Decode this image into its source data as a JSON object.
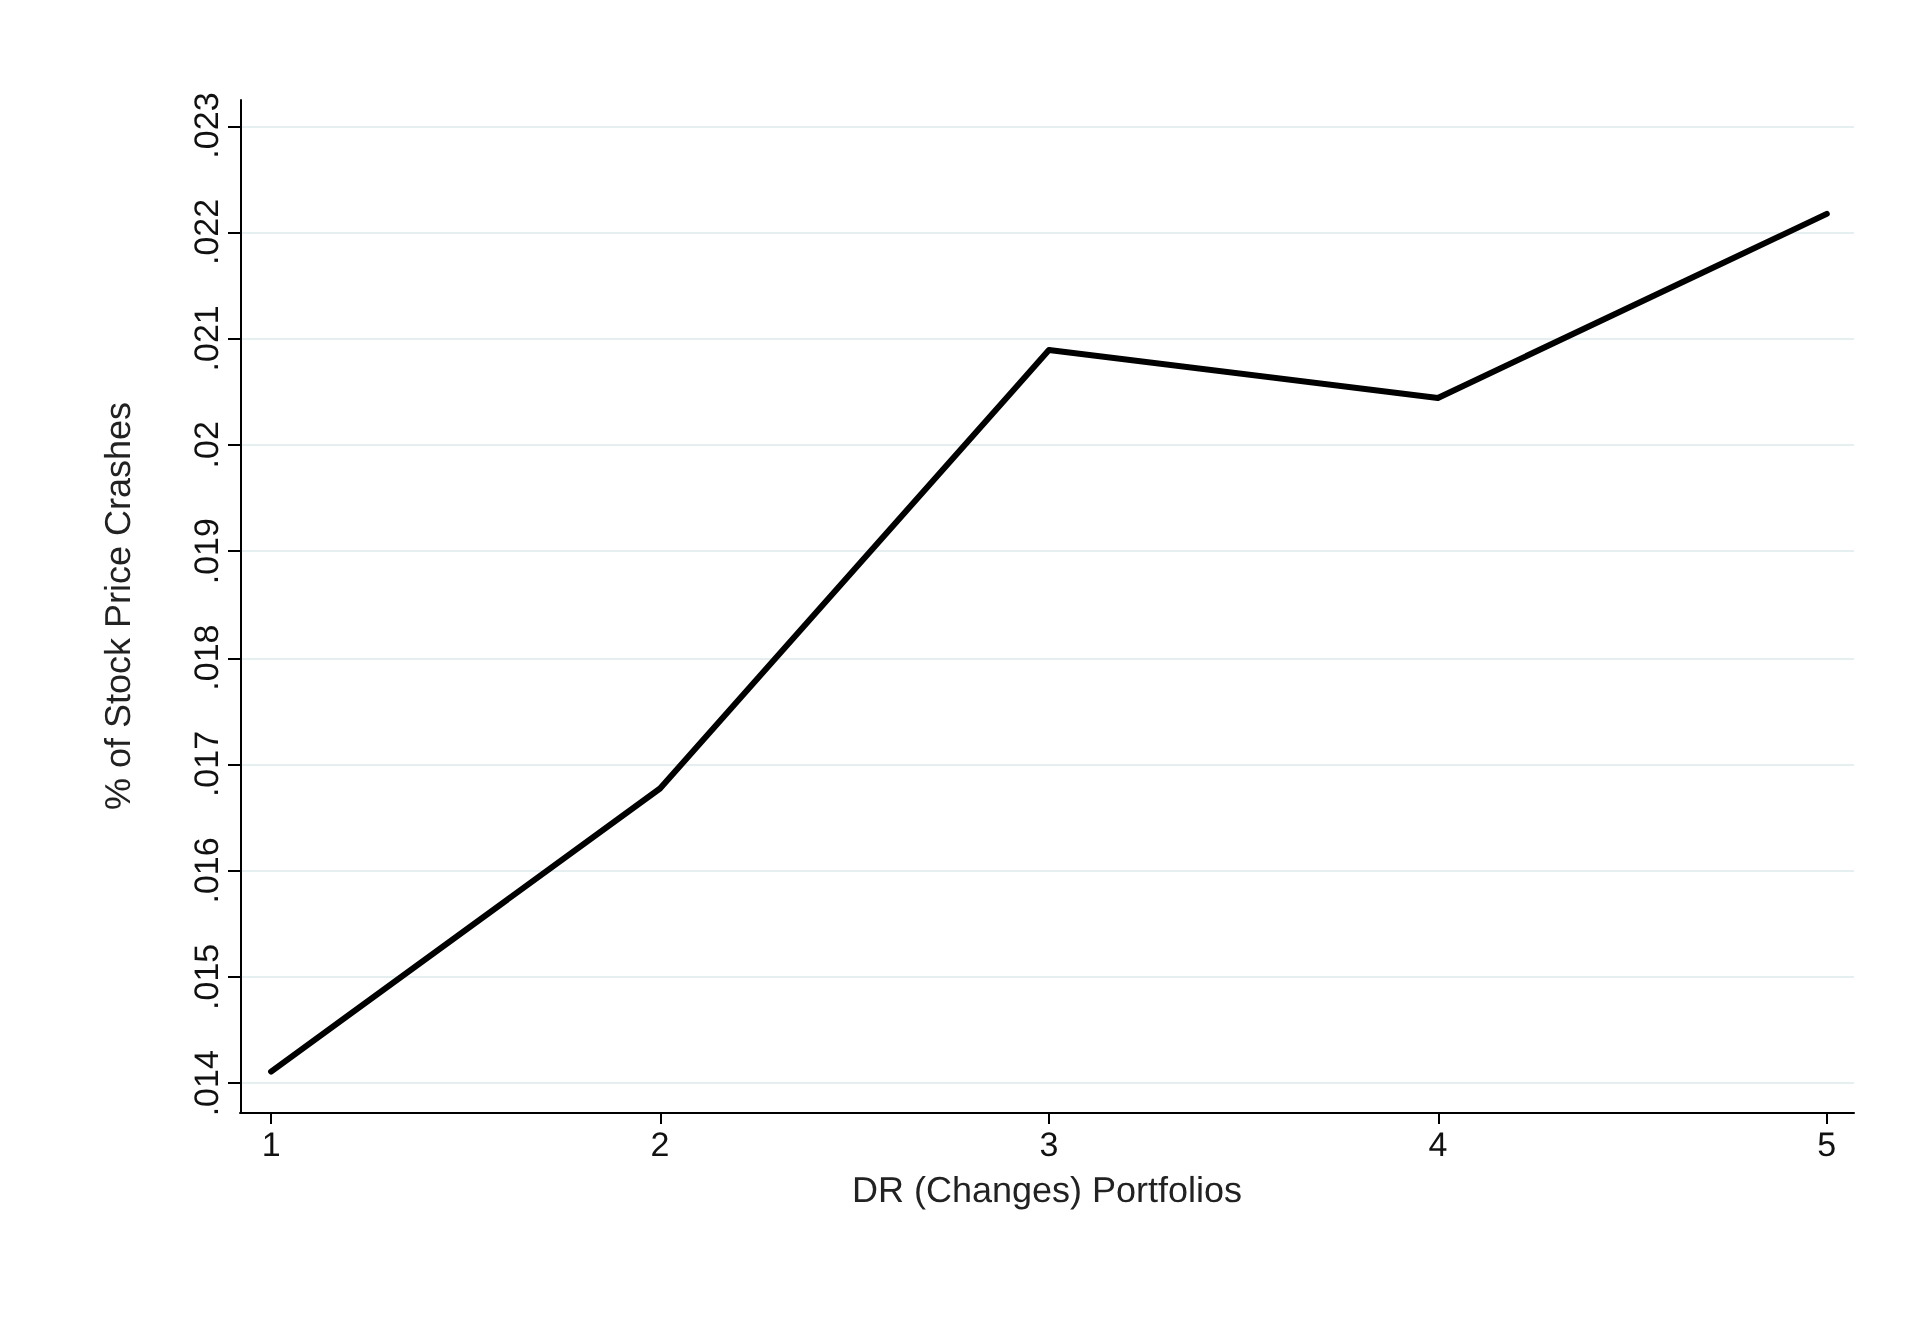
{
  "chart_data": {
    "type": "line",
    "xlabel": "DR (Changes) Portfolios",
    "ylabel": "% of Stock Price Crashes",
    "x": [
      1,
      2,
      3,
      4,
      5
    ],
    "series": [
      {
        "color": "#000000",
        "values": [
          0.01411,
          0.01677,
          0.02089,
          0.02044,
          0.02217
        ]
      }
    ],
    "xlim": [
      0.92,
      5.07
    ],
    "xticks": [
      1,
      2,
      3,
      4,
      5
    ],
    "ylim": [
      0.01373,
      0.02324
    ],
    "yticks": [
      {
        "value": 0.014,
        "label": ".014"
      },
      {
        "value": 0.015,
        "label": ".015"
      },
      {
        "value": 0.016,
        "label": ".016"
      },
      {
        "value": 0.017,
        "label": ".017"
      },
      {
        "value": 0.018,
        "label": ".018"
      },
      {
        "value": 0.019,
        "label": ".019"
      },
      {
        "value": 0.02,
        "label": ".02"
      },
      {
        "value": 0.021,
        "label": ".021"
      },
      {
        "value": 0.022,
        "label": ".022"
      },
      {
        "value": 0.023,
        "label": ".023"
      }
    ],
    "grid": "y",
    "marker": "none",
    "line_style": "solid"
  }
}
